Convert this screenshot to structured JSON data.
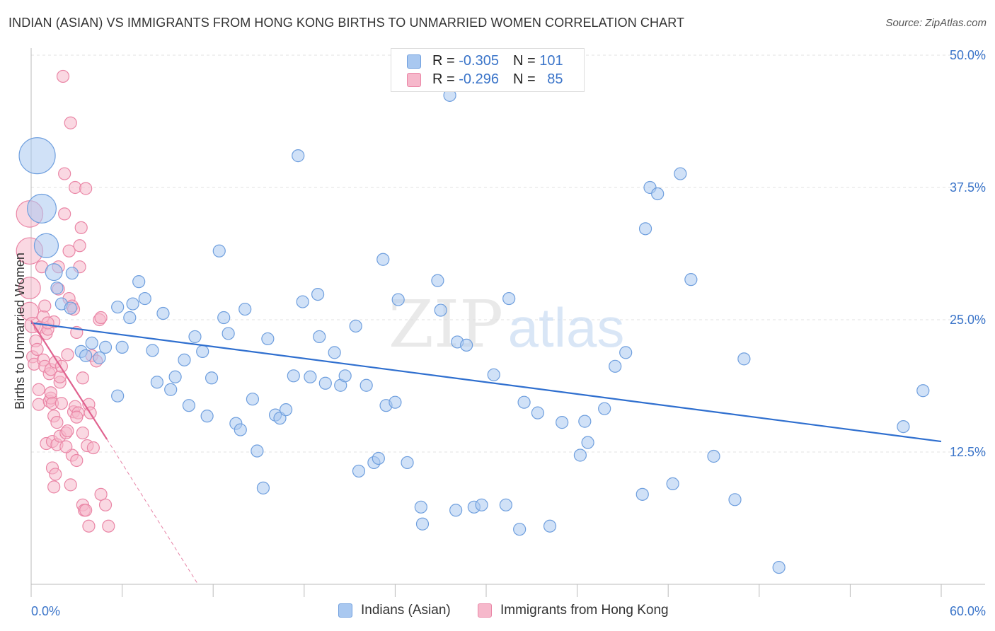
{
  "header": {
    "title": "INDIAN (ASIAN) VS IMMIGRANTS FROM HONG KONG BIRTHS TO UNMARRIED WOMEN CORRELATION CHART",
    "source": "Source: ZipAtlas.com"
  },
  "legend": {
    "row1": {
      "r_label": "R = ",
      "r_value": "-0.305",
      "n_label": "N = ",
      "n_value": "101"
    },
    "row2": {
      "r_label": "R = ",
      "r_value": "-0.296",
      "n_label": "N = ",
      "n_value": "85"
    }
  },
  "watermark": {
    "zip": "ZIP",
    "atlas": "atlas"
  },
  "colors": {
    "blue_fill": "#a9c8f0",
    "blue_stroke": "#6f9fde",
    "blue_line": "#2f6fcf",
    "pink_fill": "#f6b8cb",
    "pink_stroke": "#ea86a6",
    "pink_line": "#e0628f",
    "axis_label": "#3a74c9",
    "grid": "#e2e2e2"
  },
  "chart_data": {
    "type": "scatter",
    "title": "INDIAN (ASIAN) VS IMMIGRANTS FROM HONG KONG BIRTHS TO UNMARRIED WOMEN CORRELATION CHART",
    "xlabel": "",
    "ylabel": "Births to Unmarried Women",
    "xlim": [
      0,
      60
    ],
    "ylim": [
      0,
      50
    ],
    "x_tick_labels": [
      "0.0%",
      "60.0%"
    ],
    "y_ticks": [
      12.5,
      25.0,
      37.5,
      50.0
    ],
    "y_tick_labels": [
      "12.5%",
      "25.0%",
      "37.5%",
      "50.0%"
    ],
    "grid": true,
    "legend_position": "bottom",
    "series": [
      {
        "name": "Indians (Asian)",
        "color": "#a9c8f0",
        "trend": {
          "x": [
            0.0,
            60.0
          ],
          "y": [
            24.7,
            13.5
          ],
          "dashed_extension": false
        },
        "points": [
          [
            0.4,
            40.5,
            3
          ],
          [
            0.7,
            35.5,
            2.4
          ],
          [
            1.0,
            32.0,
            2
          ],
          [
            1.5,
            29.5,
            1.4
          ],
          [
            1.7,
            28.0,
            1
          ],
          [
            2.0,
            26.5,
            1
          ],
          [
            2.6,
            26.1,
            1
          ],
          [
            2.7,
            29.4,
            1
          ],
          [
            3.3,
            22.0,
            1
          ],
          [
            3.6,
            21.6,
            1
          ],
          [
            4.0,
            22.8,
            1
          ],
          [
            4.5,
            21.4,
            1
          ],
          [
            4.9,
            22.4,
            1
          ],
          [
            5.7,
            26.2,
            1
          ],
          [
            5.7,
            17.8,
            1
          ],
          [
            6.0,
            22.4,
            1
          ],
          [
            6.5,
            25.2,
            1
          ],
          [
            6.7,
            26.5,
            1
          ],
          [
            7.1,
            28.6,
            1
          ],
          [
            7.5,
            27.0,
            1
          ],
          [
            8.0,
            22.1,
            1
          ],
          [
            8.3,
            19.1,
            1
          ],
          [
            8.7,
            25.6,
            1
          ],
          [
            9.2,
            18.4,
            1
          ],
          [
            9.5,
            19.6,
            1
          ],
          [
            10.1,
            21.2,
            1
          ],
          [
            10.4,
            16.9,
            1
          ],
          [
            10.8,
            23.4,
            1
          ],
          [
            11.3,
            22.0,
            1
          ],
          [
            11.6,
            15.9,
            1
          ],
          [
            11.9,
            19.5,
            1
          ],
          [
            12.4,
            31.5,
            1
          ],
          [
            12.7,
            25.2,
            1
          ],
          [
            13.0,
            23.7,
            1
          ],
          [
            13.5,
            15.2,
            1
          ],
          [
            13.8,
            14.6,
            1
          ],
          [
            14.1,
            26.0,
            1
          ],
          [
            14.6,
            17.5,
            1
          ],
          [
            14.9,
            12.6,
            1
          ],
          [
            15.3,
            9.1,
            1
          ],
          [
            15.6,
            23.2,
            1
          ],
          [
            16.1,
            16.0,
            1
          ],
          [
            16.4,
            15.7,
            1
          ],
          [
            16.8,
            16.5,
            1
          ],
          [
            17.3,
            19.7,
            1
          ],
          [
            17.6,
            40.5,
            1
          ],
          [
            17.9,
            26.7,
            1
          ],
          [
            18.4,
            19.6,
            1
          ],
          [
            18.9,
            27.4,
            1
          ],
          [
            19.0,
            23.4,
            1
          ],
          [
            19.4,
            19.0,
            1
          ],
          [
            20.0,
            21.9,
            1
          ],
          [
            20.4,
            18.8,
            1
          ],
          [
            20.7,
            19.7,
            1
          ],
          [
            21.4,
            24.4,
            1
          ],
          [
            21.6,
            10.7,
            1
          ],
          [
            22.1,
            18.8,
            1
          ],
          [
            22.6,
            11.5,
            1
          ],
          [
            22.9,
            11.9,
            1
          ],
          [
            23.2,
            30.7,
            1
          ],
          [
            23.4,
            16.9,
            1
          ],
          [
            24.0,
            17.2,
            1
          ],
          [
            24.2,
            26.9,
            1
          ],
          [
            24.8,
            11.5,
            1
          ],
          [
            25.7,
            7.3,
            1
          ],
          [
            25.8,
            5.7,
            1
          ],
          [
            26.8,
            28.7,
            1
          ],
          [
            27.0,
            25.9,
            1
          ],
          [
            27.6,
            46.2,
            1
          ],
          [
            28.0,
            7.0,
            1
          ],
          [
            28.1,
            22.9,
            1
          ],
          [
            28.7,
            22.6,
            1
          ],
          [
            29.2,
            7.3,
            1
          ],
          [
            29.7,
            7.5,
            1
          ],
          [
            30.5,
            19.8,
            1
          ],
          [
            31.3,
            7.5,
            1
          ],
          [
            31.5,
            27.0,
            1
          ],
          [
            32.2,
            5.2,
            1
          ],
          [
            32.5,
            17.2,
            1
          ],
          [
            33.4,
            16.2,
            1
          ],
          [
            34.2,
            5.5,
            1
          ],
          [
            35.0,
            15.3,
            1
          ],
          [
            36.2,
            12.2,
            1
          ],
          [
            36.5,
            15.4,
            1
          ],
          [
            36.7,
            13.4,
            1
          ],
          [
            37.8,
            16.6,
            1
          ],
          [
            38.5,
            20.6,
            1
          ],
          [
            39.2,
            21.9,
            1
          ],
          [
            40.3,
            8.5,
            1
          ],
          [
            40.5,
            33.6,
            1
          ],
          [
            40.8,
            37.5,
            1
          ],
          [
            41.3,
            36.9,
            1
          ],
          [
            42.3,
            9.5,
            1
          ],
          [
            42.8,
            38.8,
            1
          ],
          [
            43.5,
            28.8,
            1
          ],
          [
            45.0,
            12.1,
            1
          ],
          [
            46.4,
            8.0,
            1
          ],
          [
            47.0,
            21.3,
            1
          ],
          [
            49.3,
            1.6,
            1
          ],
          [
            57.5,
            14.9,
            1
          ],
          [
            58.8,
            18.3,
            1
          ]
        ]
      },
      {
        "name": "Immigrants from Hong Kong",
        "color": "#f6b8cb",
        "trend": {
          "x": [
            0.0,
            5.0
          ],
          "y": [
            24.9,
            13.7
          ],
          "dashed_extension": true,
          "extension_to": [
            11.0,
            0.0
          ]
        },
        "points": [
          [
            -0.1,
            35.0,
            2.2
          ],
          [
            -0.1,
            31.5,
            2.2
          ],
          [
            -0.1,
            28.0,
            1.8
          ],
          [
            -0.1,
            25.8,
            1.5
          ],
          [
            0.1,
            24.5,
            1.3
          ],
          [
            0.1,
            21.5,
            1
          ],
          [
            0.2,
            20.8,
            1
          ],
          [
            0.3,
            23.0,
            1
          ],
          [
            0.4,
            22.2,
            1
          ],
          [
            0.5,
            17.0,
            1
          ],
          [
            0.5,
            18.4,
            1
          ],
          [
            0.6,
            24.3,
            1
          ],
          [
            0.7,
            30.0,
            1
          ],
          [
            0.8,
            25.3,
            1
          ],
          [
            0.8,
            21.2,
            1
          ],
          [
            0.9,
            20.6,
            1
          ],
          [
            0.9,
            26.3,
            1
          ],
          [
            1.0,
            13.3,
            1
          ],
          [
            1.0,
            23.7,
            1
          ],
          [
            1.1,
            24.1,
            1
          ],
          [
            1.2,
            17.3,
            1
          ],
          [
            1.2,
            19.9,
            1
          ],
          [
            1.3,
            20.3,
            1
          ],
          [
            1.3,
            17.6,
            1
          ],
          [
            1.3,
            18.1,
            1
          ],
          [
            1.4,
            17.1,
            1
          ],
          [
            1.4,
            13.5,
            1
          ],
          [
            1.4,
            11.0,
            1
          ],
          [
            1.5,
            9.2,
            1
          ],
          [
            1.5,
            15.9,
            1
          ],
          [
            1.5,
            24.8,
            1
          ],
          [
            1.6,
            21.0,
            1
          ],
          [
            1.6,
            10.4,
            1
          ],
          [
            1.7,
            13.2,
            1
          ],
          [
            1.7,
            15.3,
            1
          ],
          [
            1.8,
            30.0,
            1
          ],
          [
            1.8,
            27.9,
            1
          ],
          [
            1.9,
            19.1,
            1
          ],
          [
            1.9,
            19.6,
            1
          ],
          [
            1.9,
            14.0,
            1
          ],
          [
            2.0,
            20.6,
            1
          ],
          [
            2.0,
            17.1,
            1
          ],
          [
            2.1,
            48.0,
            1
          ],
          [
            2.2,
            35.0,
            1
          ],
          [
            2.2,
            38.8,
            1
          ],
          [
            2.3,
            14.3,
            1
          ],
          [
            2.4,
            14.5,
            1
          ],
          [
            2.4,
            21.7,
            1
          ],
          [
            2.5,
            31.5,
            1
          ],
          [
            2.5,
            27.0,
            1
          ],
          [
            2.6,
            43.6,
            1
          ],
          [
            2.6,
            9.4,
            1
          ],
          [
            2.7,
            26.3,
            1
          ],
          [
            2.7,
            12.2,
            1
          ],
          [
            2.8,
            26.0,
            1
          ],
          [
            2.8,
            16.3,
            1
          ],
          [
            2.9,
            37.5,
            1
          ],
          [
            2.9,
            16.8,
            1
          ],
          [
            3.0,
            11.7,
            1
          ],
          [
            3.0,
            23.8,
            1
          ],
          [
            3.1,
            16.2,
            1
          ],
          [
            3.2,
            30.0,
            1
          ],
          [
            3.2,
            32.0,
            1
          ],
          [
            3.3,
            33.7,
            1
          ],
          [
            3.4,
            19.5,
            1
          ],
          [
            3.4,
            14.3,
            1
          ],
          [
            3.4,
            7.5,
            1
          ],
          [
            3.5,
            7.0,
            1
          ],
          [
            3.6,
            7.0,
            1
          ],
          [
            3.6,
            37.4,
            1
          ],
          [
            3.7,
            13.1,
            1
          ],
          [
            3.8,
            5.5,
            1
          ],
          [
            3.8,
            17.0,
            1
          ],
          [
            3.9,
            16.2,
            1
          ],
          [
            4.0,
            21.6,
            1
          ],
          [
            4.1,
            12.9,
            1
          ],
          [
            4.3,
            21.1,
            1
          ],
          [
            4.5,
            25.0,
            1
          ],
          [
            4.6,
            8.5,
            1
          ],
          [
            4.6,
            25.2,
            1
          ],
          [
            4.9,
            7.5,
            1
          ],
          [
            5.1,
            5.5,
            1
          ],
          [
            3.0,
            15.8,
            1
          ],
          [
            1.1,
            24.7,
            1
          ],
          [
            2.3,
            13.0,
            1
          ]
        ]
      }
    ]
  },
  "bottom_legend": {
    "item1": "Indians (Asian)",
    "item2": "Immigrants from Hong Kong"
  }
}
